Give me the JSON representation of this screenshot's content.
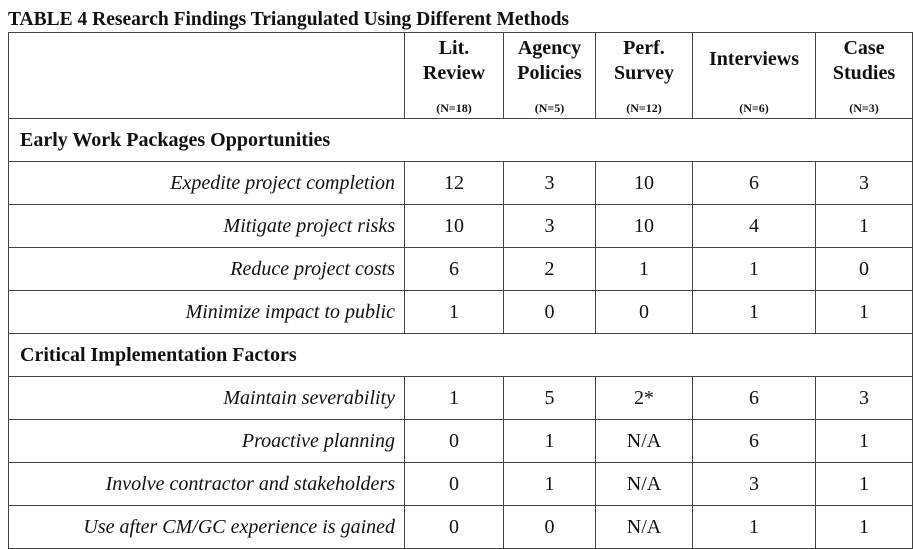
{
  "caption": "TABLE 4 Research Findings Triangulated Using Different Methods",
  "columns": [
    {
      "line1": "Lit.",
      "line2": "Review",
      "n": "(N=18)"
    },
    {
      "line1": "Agency",
      "line2": "Policies",
      "n": "(N=5)"
    },
    {
      "line1": "Perf.",
      "line2": "Survey",
      "n": "(N=12)"
    },
    {
      "line1": "Interviews",
      "line2": "",
      "n": "(N=6)"
    },
    {
      "line1": "Case",
      "line2": "Studies",
      "n": "(N=3)"
    }
  ],
  "sections": [
    {
      "title": "Early Work Packages Opportunities",
      "rows": [
        {
          "label": "Expedite project completion",
          "values": [
            "12",
            "3",
            "10",
            "6",
            "3"
          ]
        },
        {
          "label": "Mitigate project risks",
          "values": [
            "10",
            "3",
            "10",
            "4",
            "1"
          ]
        },
        {
          "label": "Reduce project costs",
          "values": [
            "6",
            "2",
            "1",
            "1",
            "0"
          ]
        },
        {
          "label": "Minimize impact to public",
          "values": [
            "1",
            "0",
            "0",
            "1",
            "1"
          ]
        }
      ]
    },
    {
      "title": "Critical Implementation Factors",
      "rows": [
        {
          "label": "Maintain severability",
          "values": [
            "1",
            "5",
            "2*",
            "6",
            "3"
          ]
        },
        {
          "label": "Proactive planning",
          "values": [
            "0",
            "1",
            "N/A",
            "6",
            "1"
          ]
        },
        {
          "label": "Involve contractor and stakeholders",
          "values": [
            "0",
            "1",
            "N/A",
            "3",
            "1"
          ]
        },
        {
          "label": "Use after CM/GC experience is gained",
          "values": [
            "0",
            "0",
            "N/A",
            "1",
            "1"
          ]
        }
      ]
    }
  ]
}
